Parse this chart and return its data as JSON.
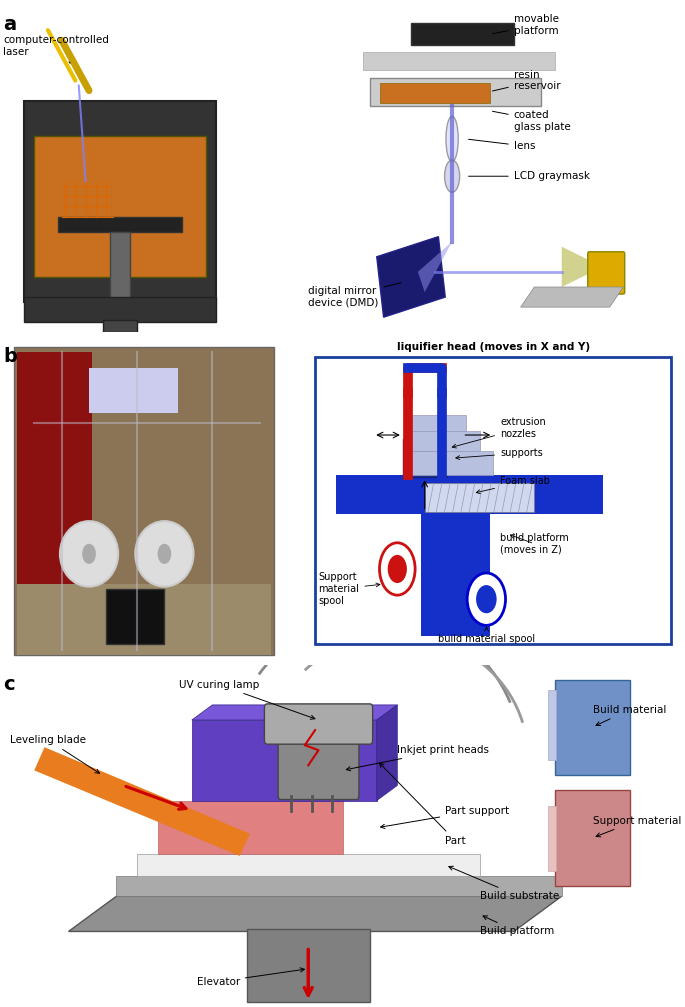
{
  "figure_width": 6.85,
  "figure_height": 10.07,
  "background_color": "#ffffff",
  "label_a": "a",
  "label_b": "b",
  "label_c": "c",
  "panel_b": {
    "diagram_title": "liquifier head (moves in X and Y)",
    "diagram_labels": [
      "extrusion\nnozzles",
      "supports",
      "Foam slab",
      "build platform\n(moves in Z)",
      "Support\nmaterial\nspool",
      "build material spool"
    ],
    "border_color": "#1a3f9e",
    "blue_color": "#1530c8",
    "red_color": "#cc1111"
  },
  "panel_c": {
    "red_arrow_color": "#cc0000",
    "orange_color": "#e87c1e",
    "purple_color": "#6040c0",
    "pink_color": "#e07070",
    "blue_box_color": "#7090d0",
    "pink_box_color": "#d08080",
    "gray_color": "#909090"
  },
  "font_size_label": 14,
  "font_size_text": 7.5,
  "font_size_diagram": 7.0
}
